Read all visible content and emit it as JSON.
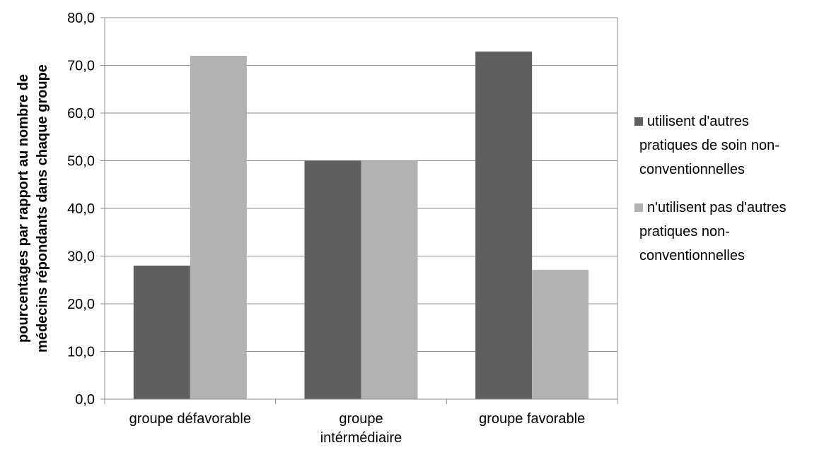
{
  "chart_data": {
    "type": "bar",
    "title": "",
    "categories": [
      "groupe défavorable",
      "groupe intérmédiaire",
      "groupe favorable"
    ],
    "category_label_lines": [
      [
        "groupe défavorable"
      ],
      [
        "groupe",
        "intérmédiaire"
      ],
      [
        "groupe favorable"
      ]
    ],
    "series": [
      {
        "name": "utilisent d'autres pratiques de soin non-conventionnelles",
        "legend_lines": [
          "utilisent d'autres",
          "pratiques de soin non-",
          "conventionnelles"
        ],
        "color": "#5f5f5f",
        "values": [
          28.0,
          50.0,
          72.9
        ]
      },
      {
        "name": "n'utilisent pas d'autres pratiques non-conventionnelles",
        "legend_lines": [
          "n'utilisent pas d'autres",
          "pratiques non-",
          "conventionnelles"
        ],
        "color": "#b2b2b2",
        "values": [
          72.0,
          50.0,
          27.1
        ]
      }
    ],
    "ylabel_lines": [
      "pourcentages par rapport au nombre de",
      "médecins répondants dans chaque groupe"
    ],
    "ylim": [
      0,
      80
    ],
    "yticks": [
      "0,0",
      "10,0",
      "20,0",
      "30,0",
      "40,0",
      "50,0",
      "60,0",
      "70,0",
      "80,0"
    ],
    "grid": true,
    "legend_position": "right"
  }
}
